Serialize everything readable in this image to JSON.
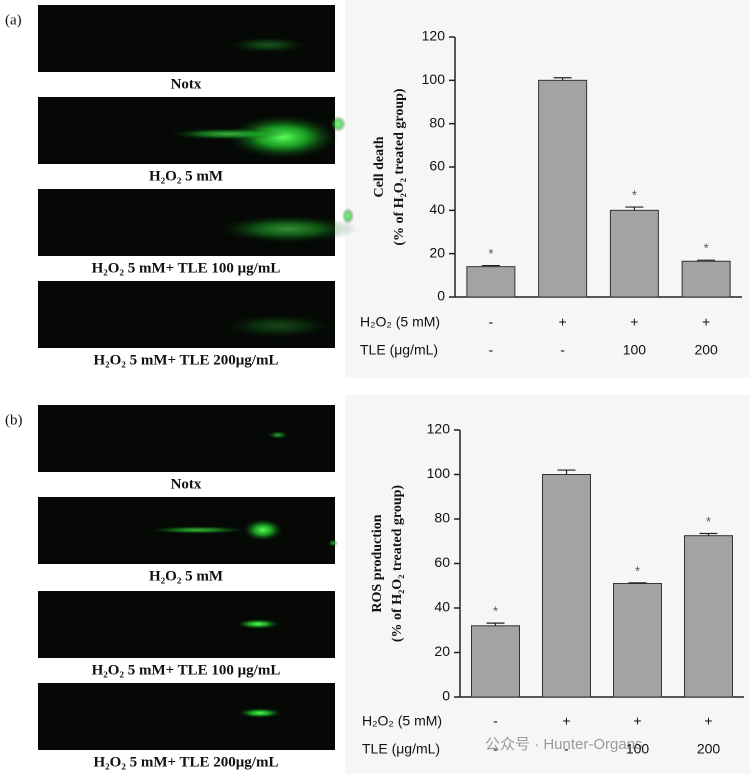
{
  "panels": [
    {
      "label": "(a)",
      "captions": [
        "Notx",
        "H₂O₂ 5 mM",
        "H₂O₂ 5 mM+ TLE 100 μg/mL",
        "H₂O₂ 5 mM+ TLE 200μg/mL"
      ]
    },
    {
      "label": "(b)",
      "captions": [
        "Notx",
        "H₂O₂ 5 mM",
        "H₂O₂ 5 mM+ TLE 100 μg/mL",
        "H₂O₂ 5 mM+ TLE 200μg/mL"
      ]
    }
  ],
  "chart_data": [
    {
      "type": "bar",
      "ylabel": [
        "Cell death",
        "(% of H₂O₂ treated group)"
      ],
      "categories": [
        null,
        null,
        null,
        null
      ],
      "values": [
        14,
        100,
        40,
        16.5
      ],
      "errors": [
        0.5,
        1.2,
        1.5,
        0.5
      ],
      "color": "#a3a3a3",
      "annotations": [
        "*",
        null,
        "*",
        "*"
      ],
      "conditions": [
        {
          "label": "H₂O₂ (5 mM)",
          "values": [
            "-",
            "+",
            "+",
            "+"
          ]
        },
        {
          "label": "TLE (μg/mL)",
          "values": [
            "-",
            "-",
            "100",
            "200"
          ]
        }
      ],
      "ylim": [
        0,
        120
      ],
      "yticks": [
        0,
        20,
        40,
        60,
        80,
        100,
        120
      ]
    },
    {
      "type": "bar",
      "ylabel": [
        "ROS production",
        "(% of H₂O₂ treated group)"
      ],
      "categories": [
        null,
        null,
        null,
        null
      ],
      "values": [
        32,
        100,
        51,
        72.5
      ],
      "errors": [
        1.2,
        2,
        0.3,
        1
      ],
      "color": "#a3a3a3",
      "annotations": [
        "*",
        null,
        "*",
        "*"
      ],
      "conditions": [
        {
          "label": "H₂O₂ (5 mM)",
          "values": [
            "-",
            "+",
            "+",
            "+"
          ]
        },
        {
          "label": "TLE (μg/mL)",
          "values": [
            "-",
            "-",
            "100",
            "200"
          ]
        }
      ],
      "ylim": [
        0,
        120
      ],
      "yticks": [
        0,
        20,
        40,
        60,
        80,
        100,
        120
      ]
    }
  ],
  "watermark": "公众号 · Hunter-Organs"
}
